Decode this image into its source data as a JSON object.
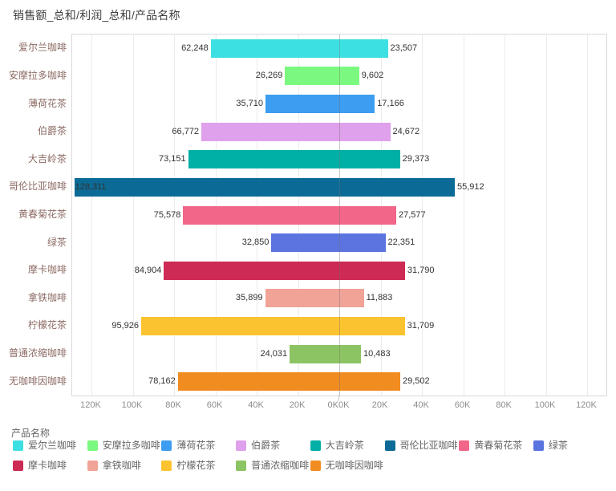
{
  "title": "销售额_总和/利润_总和/产品名称",
  "legend": {
    "title": "产品名称"
  },
  "chart_data": {
    "type": "bar",
    "subtype": "diverging-horizontal",
    "title": "销售额_总和/利润_总和/产品名称",
    "categories": [
      "爱尔兰咖啡",
      "安摩拉多咖啡",
      "薄荷花茶",
      "伯爵茶",
      "大吉岭茶",
      "哥伦比亚咖啡",
      "黄春菊花茶",
      "绿茶",
      "摩卡咖啡",
      "拿铁咖啡",
      "柠檬花茶",
      "普通浓缩咖啡",
      "无咖啡因咖啡"
    ],
    "colors": [
      "#3DE0E2",
      "#7BF87F",
      "#3D9DF0",
      "#DFA0EC",
      "#00AFA6",
      "#0B6B96",
      "#F26689",
      "#5B74DF",
      "#CE2A56",
      "#F0A396",
      "#FBC32F",
      "#8CC463",
      "#F18C21"
    ],
    "series": [
      {
        "name": "销售额_总和",
        "direction": "left",
        "values": [
          62248,
          26269,
          35710,
          66772,
          73151,
          128311,
          75578,
          32850,
          84904,
          35899,
          95926,
          24031,
          78162
        ]
      },
      {
        "name": "利润_总和",
        "direction": "right",
        "values": [
          23507,
          9602,
          17166,
          24672,
          29373,
          55912,
          27577,
          22351,
          31790,
          11883,
          31709,
          10483,
          29502
        ]
      }
    ],
    "x_axis": {
      "left_ticks": [
        "120K",
        "100K",
        "80K",
        "60K",
        "40K",
        "20K",
        "0K"
      ],
      "right_ticks": [
        "0K",
        "20K",
        "40K",
        "60K",
        "80K",
        "100K",
        "120K"
      ],
      "tick_interval": 20000,
      "max": 120000,
      "grid": true
    },
    "legend_position": "bottom"
  }
}
